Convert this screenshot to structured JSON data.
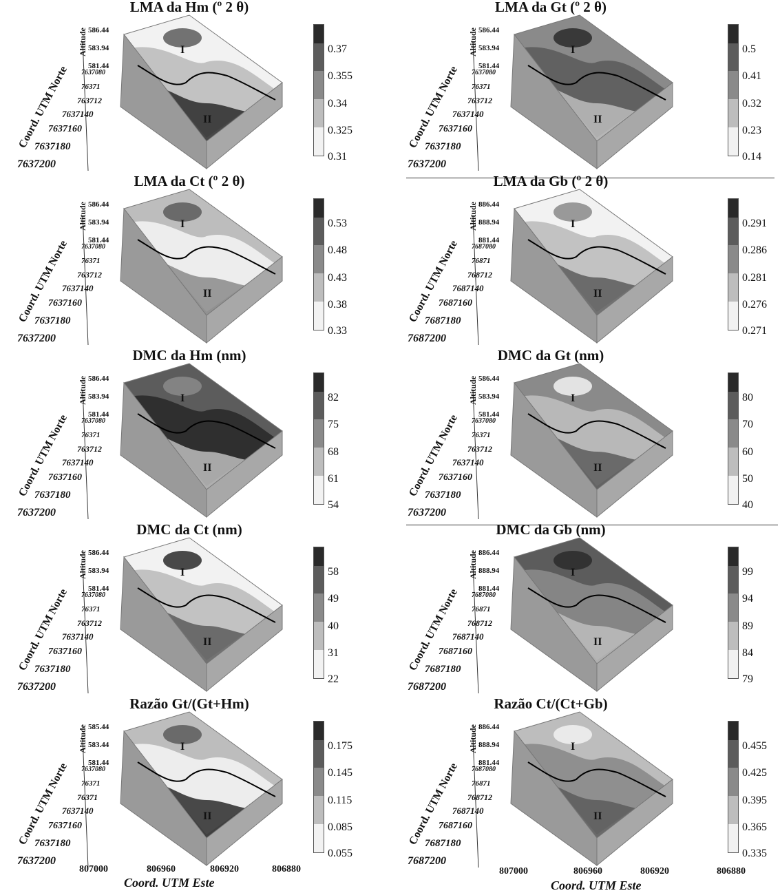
{
  "axis_labels": {
    "altitude": "Altitude",
    "north": "Coord. UTM Norte",
    "east": "Coord. UTM Este"
  },
  "east_ticks": [
    "807000",
    "806960",
    "806920",
    "806880"
  ],
  "zones": {
    "upper": "I",
    "lower": "II"
  },
  "colors": [
    "#2a2a2a",
    "#5c5c5c",
    "#8a8a8a",
    "#bdbdbd",
    "#f2f2f2"
  ],
  "panels": [
    {
      "title": "LMA da Hm (º 2 θ)",
      "alt_ticks": [
        "586.44",
        "583.94",
        "581.44"
      ],
      "north_ticks": [
        "7637080",
        "76371",
        "763712",
        "7637140",
        "7637160",
        "7637180",
        "7637200"
      ],
      "legend": [
        "0.37",
        "0.355",
        "0.34",
        "0.325",
        "0.31"
      ]
    },
    {
      "title": "LMA da Gt (º 2 θ)",
      "alt_ticks": [
        "586.44",
        "583.94",
        "581.44"
      ],
      "north_ticks": [
        "7637080",
        "76371",
        "763712",
        "7637140",
        "7637160",
        "7637180",
        "7637200"
      ],
      "legend": [
        "0.5",
        "0.41",
        "0.32",
        "0.23",
        "0.14"
      ]
    },
    {
      "title": "LMA da Ct (º 2 θ)",
      "alt_ticks": [
        "586.44",
        "583.94",
        "581.44"
      ],
      "north_ticks": [
        "7637080",
        "76371",
        "763712",
        "7637140",
        "7637160",
        "7637180",
        "7637200"
      ],
      "legend": [
        "0.53",
        "0.48",
        "0.43",
        "0.38",
        "0.33"
      ]
    },
    {
      "title": "LMA da Gb (º 2 θ)",
      "alt_ticks": [
        "886.44",
        "888.94",
        "881.44"
      ],
      "north_ticks": [
        "7687080",
        "76871",
        "768712",
        "7687140",
        "7687160",
        "7687180",
        "7687200"
      ],
      "legend": [
        "0.291",
        "0.286",
        "0.281",
        "0.276",
        "0.271"
      ]
    },
    {
      "title": "DMC da Hm (nm)",
      "alt_ticks": [
        "586.44",
        "583.94",
        "581.44"
      ],
      "north_ticks": [
        "7637080",
        "76371",
        "763712",
        "7637140",
        "7637160",
        "7637180",
        "7637200"
      ],
      "legend": [
        "82",
        "75",
        "68",
        "61",
        "54"
      ]
    },
    {
      "title": "DMC da Gt (nm)",
      "alt_ticks": [
        "586.44",
        "583.94",
        "581.44"
      ],
      "north_ticks": [
        "7637080",
        "76371",
        "763712",
        "7637140",
        "7637160",
        "7637180",
        "7637200"
      ],
      "legend": [
        "80",
        "70",
        "60",
        "50",
        "40"
      ]
    },
    {
      "title": "DMC da Ct (nm)",
      "alt_ticks": [
        "586.44",
        "583.94",
        "581.44"
      ],
      "north_ticks": [
        "7637080",
        "76371",
        "763712",
        "7637140",
        "7637160",
        "7637180",
        "7637200"
      ],
      "legend": [
        "58",
        "49",
        "40",
        "31",
        "22"
      ]
    },
    {
      "title": "DMC da Gb (nm)",
      "alt_ticks": [
        "886.44",
        "888.94",
        "881.44"
      ],
      "north_ticks": [
        "7687080",
        "76871",
        "768712",
        "7687140",
        "7687160",
        "7687180",
        "7687200"
      ],
      "legend": [
        "99",
        "94",
        "89",
        "84",
        "79"
      ]
    },
    {
      "title": "Razão Gt/(Gt+Hm)",
      "alt_ticks": [
        "585.44",
        "583.44",
        "581.44"
      ],
      "north_ticks": [
        "7637080",
        "76371",
        "76371",
        "7637140",
        "7637160",
        "7637180",
        "7637200"
      ],
      "legend": [
        "0.175",
        "0.145",
        "0.115",
        "0.085",
        "0.055"
      ]
    },
    {
      "title": "Razão Ct/(Ct+Gb)",
      "alt_ticks": [
        "886.44",
        "888.94",
        "881.44"
      ],
      "north_ticks": [
        "7687080",
        "76871",
        "768712",
        "7687140",
        "7687160",
        "7687180",
        "7687200"
      ],
      "legend": [
        "0.455",
        "0.425",
        "0.395",
        "0.365",
        "0.335"
      ]
    }
  ]
}
